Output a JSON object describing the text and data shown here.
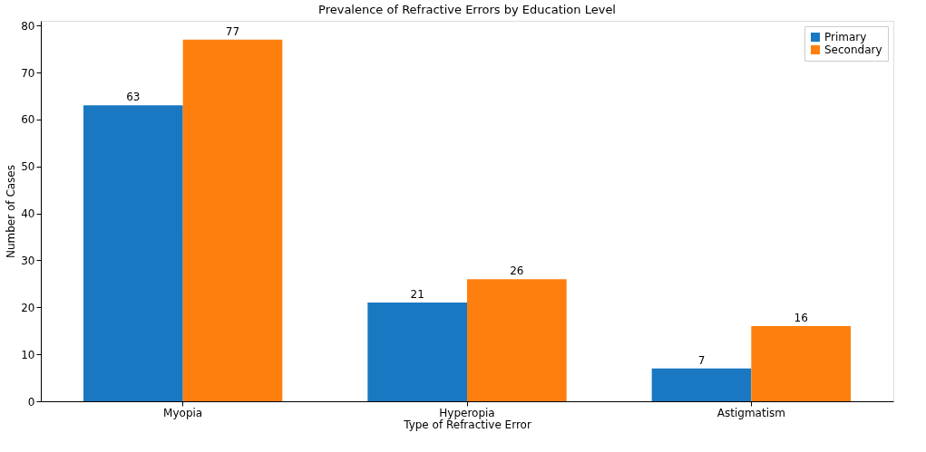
{
  "chart_data": {
    "type": "bar",
    "title": "Prevalence of Refractive Errors by Education Level",
    "xlabel": "Type of Refractive Error",
    "ylabel": "Number of Cases",
    "categories": [
      "Myopia",
      "Hyperopia",
      "Astigmatism"
    ],
    "series": [
      {
        "name": "Primary",
        "color": "#1a78c2",
        "values": [
          63,
          21,
          7
        ]
      },
      {
        "name": "Secondary",
        "color": "#ff7f0e",
        "values": [
          77,
          26,
          16
        ]
      }
    ],
    "ylim": [
      0,
      81
    ],
    "yticks": [
      0,
      10,
      20,
      30,
      40,
      50,
      60,
      70,
      80
    ],
    "grid": false,
    "legend": "top right",
    "data_labels": true
  }
}
